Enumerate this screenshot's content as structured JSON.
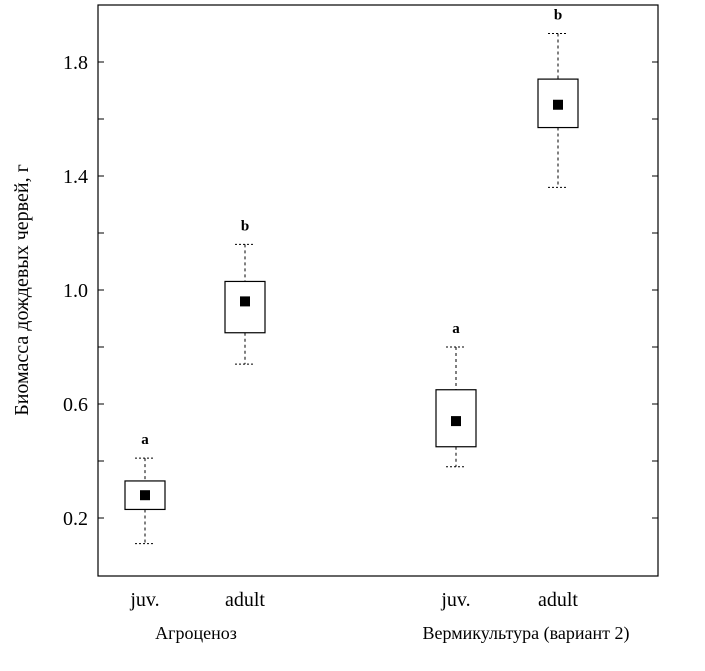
{
  "chart_data": {
    "type": "box",
    "ylabel": "Биомасса дождевых червей, г",
    "xlabel": "",
    "ylim": [
      0.0,
      2.0
    ],
    "yticks": [
      0.2,
      0.6,
      1.0,
      1.4,
      1.8
    ],
    "ytick_labels": [
      "0.2",
      "0.6",
      "1.0",
      "1.4",
      "1.8"
    ],
    "groups": [
      {
        "label": "Агроценоз",
        "categories": [
          "juv.",
          "adult"
        ]
      },
      {
        "label": "Вермикультура (вариант 2)",
        "categories": [
          "juv.",
          "adult"
        ]
      }
    ],
    "boxes": [
      {
        "group": 0,
        "category": "juv.",
        "mean": 0.28,
        "box_low": 0.23,
        "box_high": 0.33,
        "whisker_low": 0.11,
        "whisker_high": 0.41,
        "letter": "a"
      },
      {
        "group": 0,
        "category": "adult",
        "mean": 0.96,
        "box_low": 0.85,
        "box_high": 1.03,
        "whisker_low": 0.74,
        "whisker_high": 1.16,
        "letter": "b"
      },
      {
        "group": 1,
        "category": "juv.",
        "mean": 0.54,
        "box_low": 0.45,
        "box_high": 0.65,
        "whisker_low": 0.38,
        "whisker_high": 0.8,
        "letter": "a"
      },
      {
        "group": 1,
        "category": "adult",
        "mean": 1.65,
        "box_low": 1.57,
        "box_high": 1.74,
        "whisker_low": 1.36,
        "whisker_high": 1.9,
        "letter": "b"
      }
    ]
  }
}
